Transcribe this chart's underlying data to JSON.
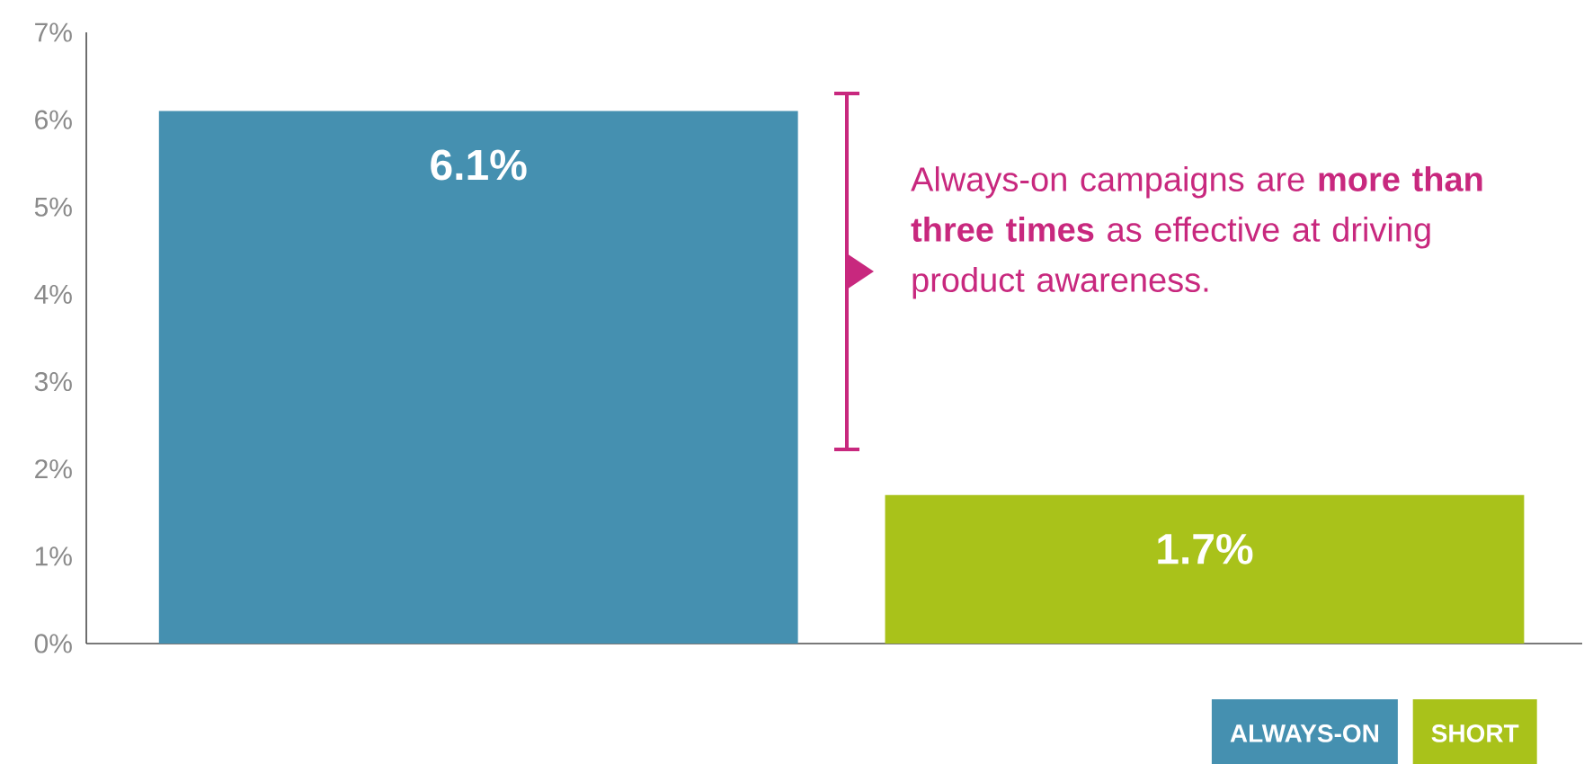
{
  "chart_data": {
    "type": "bar",
    "categories": [
      null,
      null
    ],
    "series": [
      {
        "name": "ALWAYS-ON",
        "color": "#4590b0",
        "values": [
          6.1,
          null
        ],
        "value_labels": [
          "6.1%",
          null
        ]
      },
      {
        "name": "SHORT",
        "color": "#a9c21a",
        "values": [
          null,
          1.7
        ],
        "value_labels": [
          null,
          "1.7%"
        ]
      }
    ],
    "ylim": [
      0,
      7
    ],
    "yticks": [
      {
        "value": 0,
        "label": "0%"
      },
      {
        "value": 1,
        "label": "1%"
      },
      {
        "value": 2,
        "label": "2%"
      },
      {
        "value": 3,
        "label": "3%"
      },
      {
        "value": 4,
        "label": "4%"
      },
      {
        "value": 5,
        "label": "5%"
      },
      {
        "value": 6,
        "label": "6%"
      },
      {
        "value": 7,
        "label": "7%"
      }
    ],
    "grid": false,
    "legend": "bottom right",
    "annotations": [
      "Always-on campaigns are **more than three times** as effective at driving product awareness."
    ]
  }
}
